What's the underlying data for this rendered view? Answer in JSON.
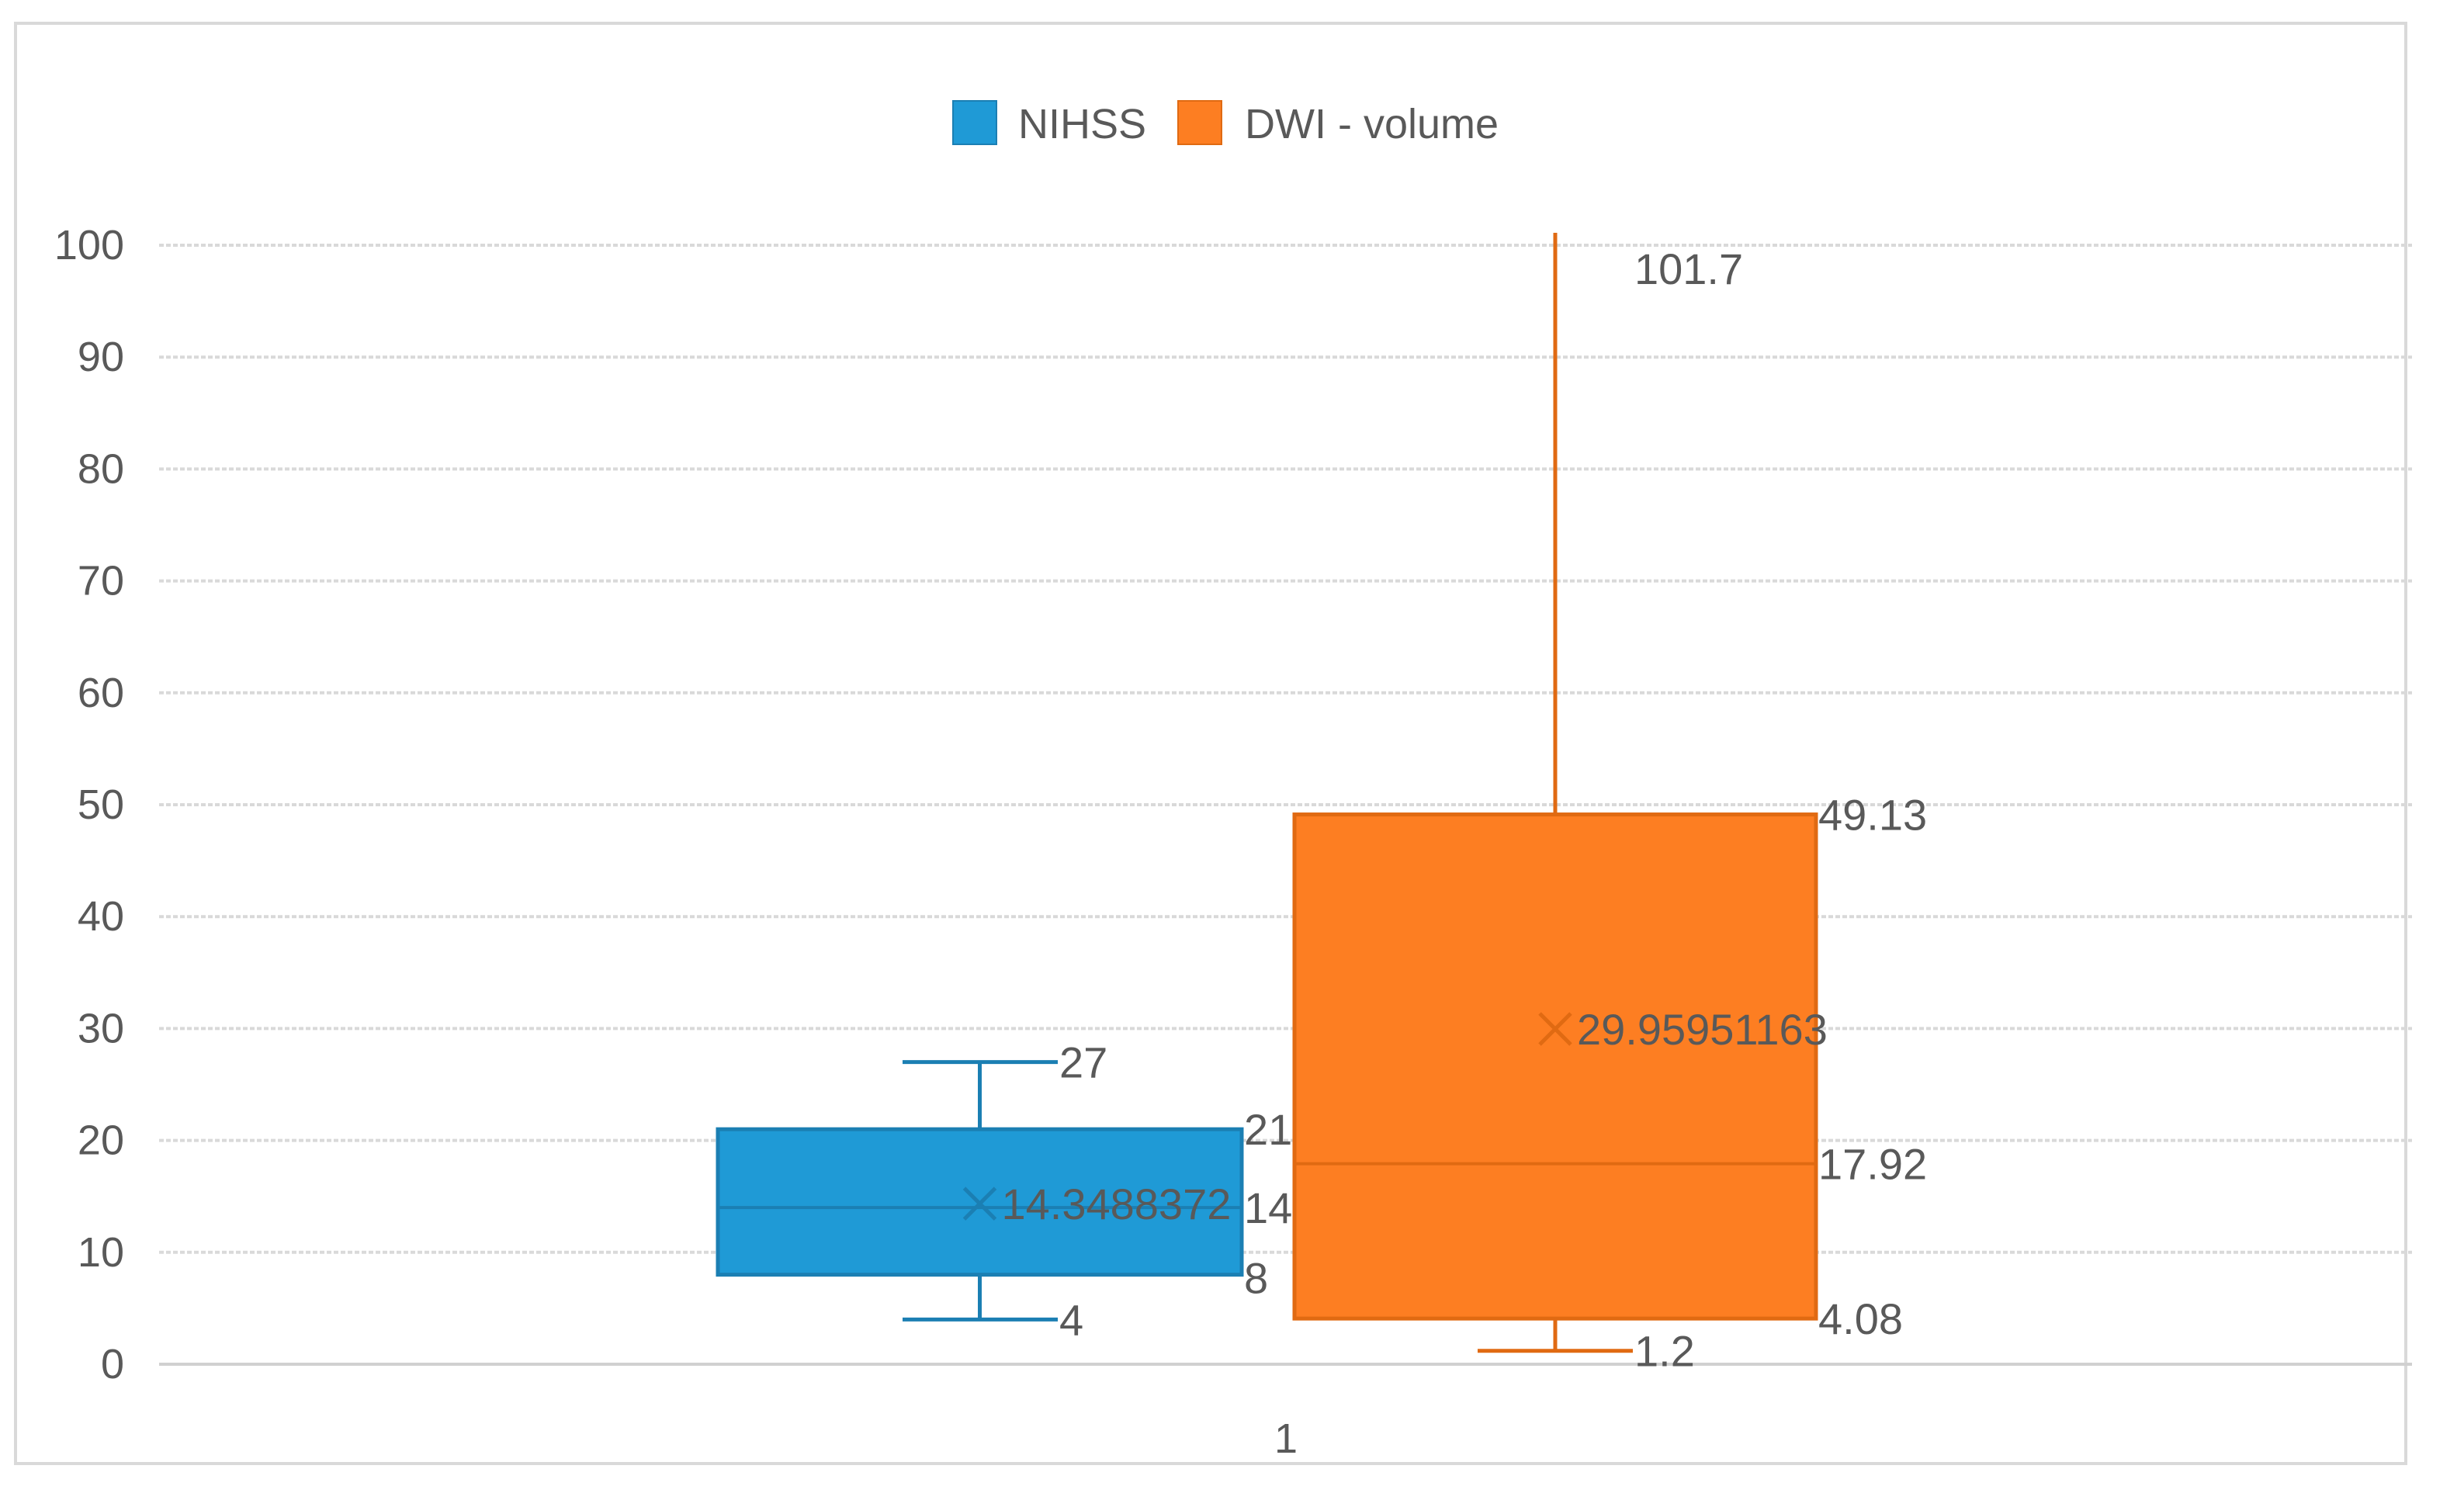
{
  "chart_data": {
    "type": "box",
    "categories": [
      "1"
    ],
    "ylim": [
      0,
      100
    ],
    "yticks": [
      0,
      10,
      20,
      30,
      40,
      50,
      60,
      70,
      80,
      90,
      100
    ],
    "grid": true,
    "legend_position": "top",
    "series": [
      {
        "name": "NIHSS",
        "color": "#1f9ad6",
        "min": 4,
        "q1": 8,
        "median": 14,
        "q3": 21,
        "max": 27,
        "mean": 14.3488372,
        "labels": {
          "max": "27",
          "q3": "21",
          "mean": "14.3488372",
          "median": "14",
          "q1": "8",
          "min": "4"
        }
      },
      {
        "name": "DWI - volume",
        "color": "#fd7e22",
        "min": 1.2,
        "q1": 4.08,
        "median": 17.92,
        "q3": 49.13,
        "max": 101.7,
        "mean": 29.95951163,
        "labels": {
          "max": "101.7",
          "q3": "49.13",
          "mean": "29.95951163",
          "median": "17.92",
          "q1": "4.08",
          "min": "1.2"
        }
      }
    ]
  }
}
